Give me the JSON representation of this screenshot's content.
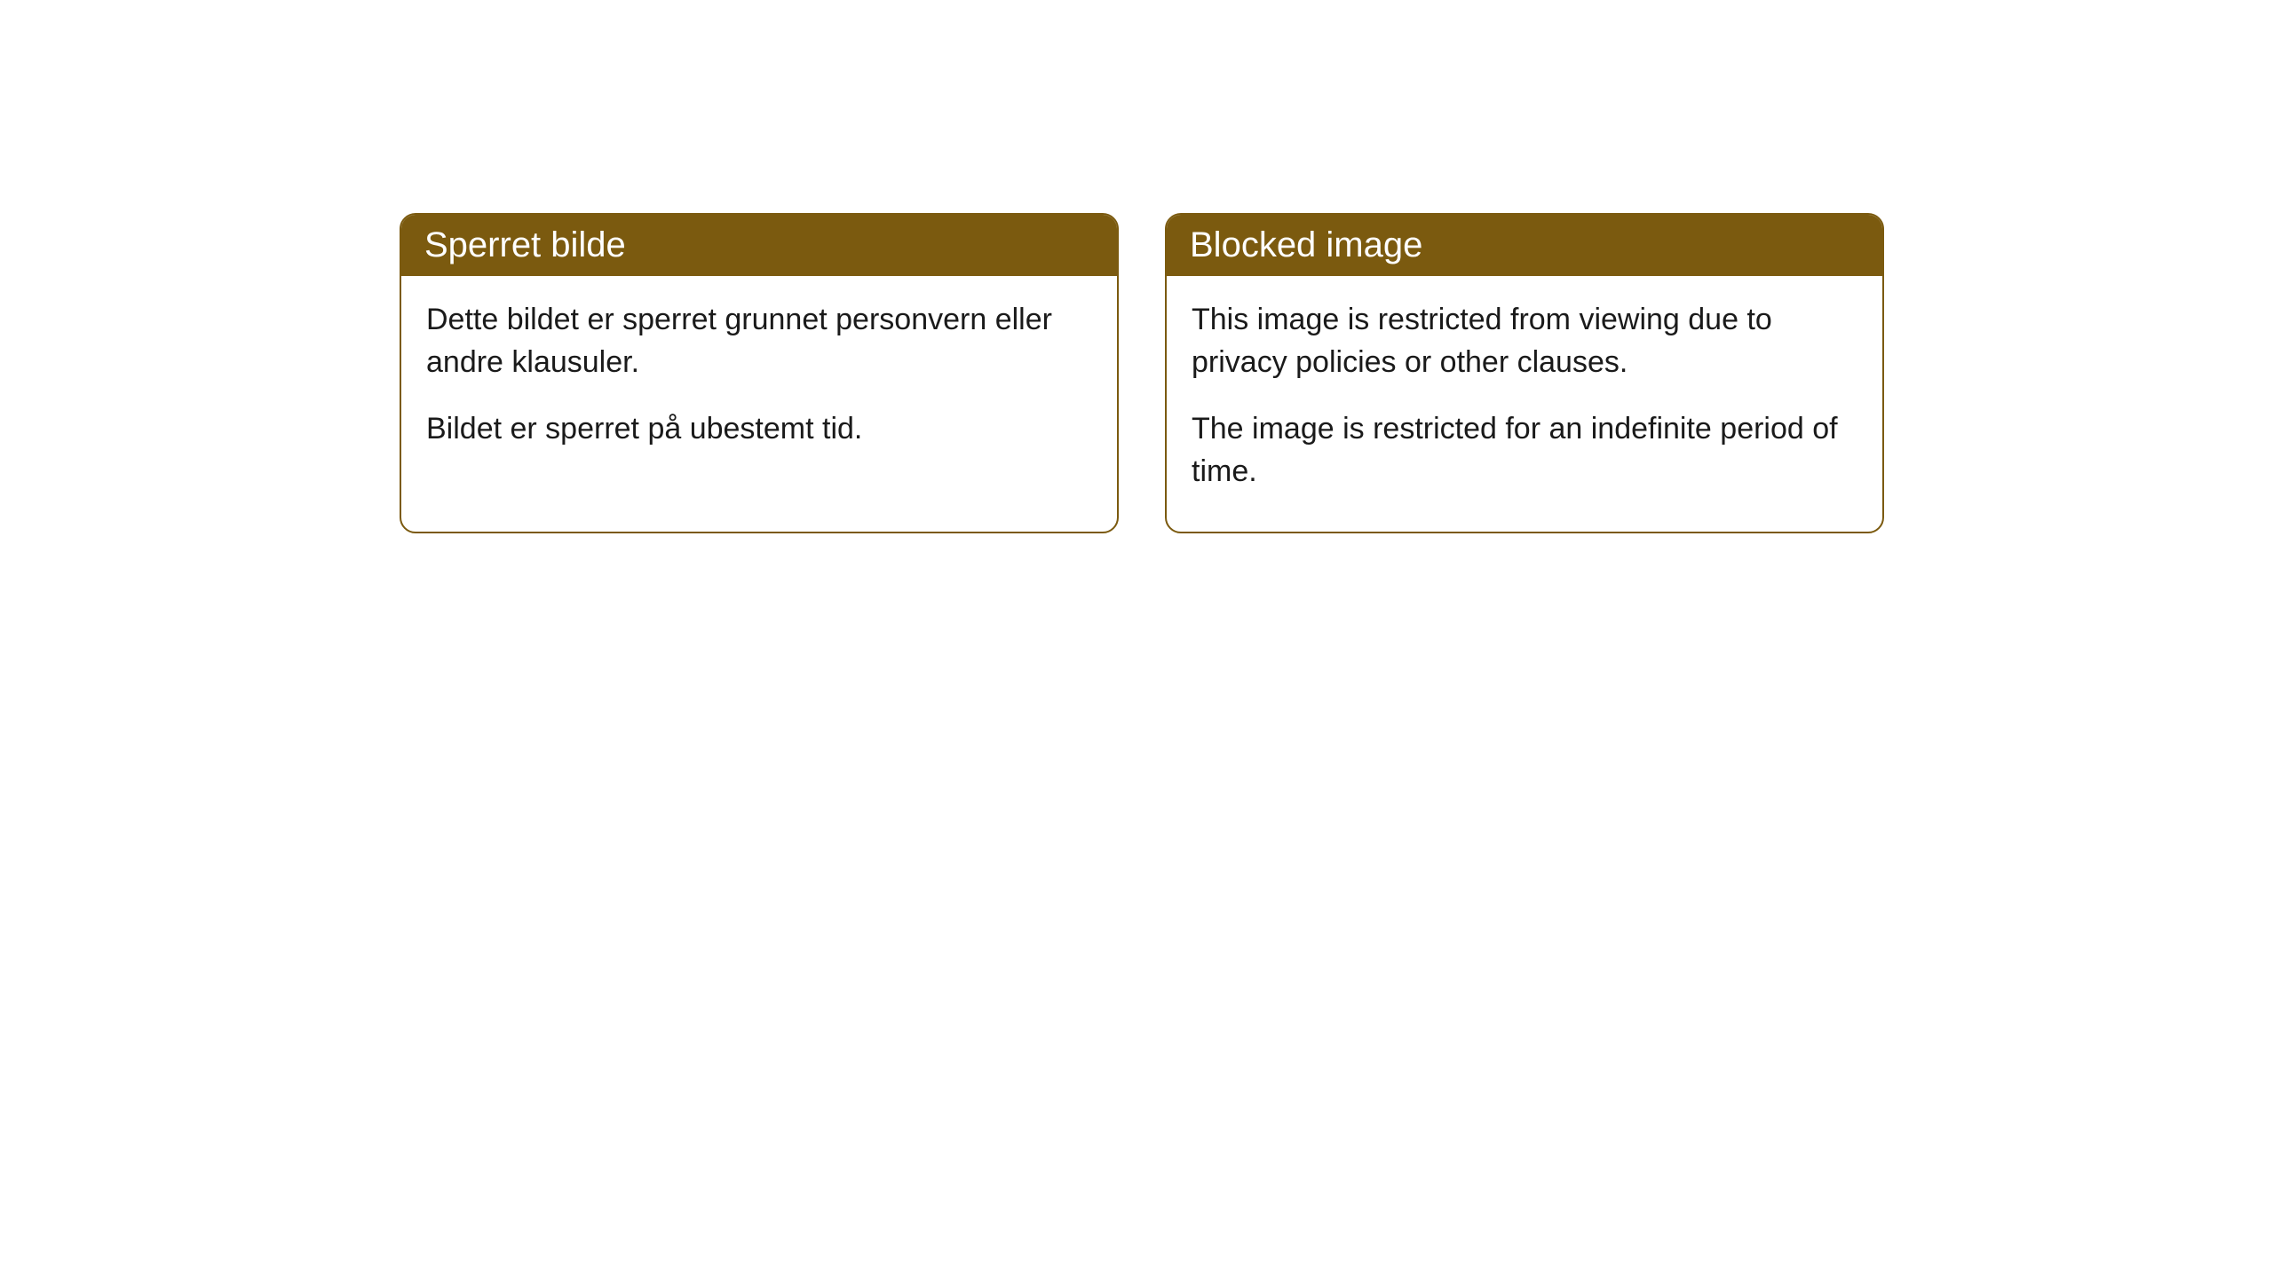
{
  "cards": [
    {
      "title": "Sperret bilde",
      "paragraph1": "Dette bildet er sperret grunnet personvern eller andre klausuler.",
      "paragraph2": "Bildet er sperret på ubestemt tid."
    },
    {
      "title": "Blocked image",
      "paragraph1": "This image is restricted from viewing due to privacy policies or other clauses.",
      "paragraph2": "The image is restricted for an indefinite period of time."
    }
  ],
  "styling": {
    "header_background_color": "#7b5a0f",
    "header_text_color": "#ffffff",
    "card_border_color": "#7b5a0f",
    "card_background_color": "#ffffff",
    "body_text_color": "#1a1a1a",
    "page_background_color": "#ffffff",
    "header_fontsize": 40,
    "body_fontsize": 34,
    "border_radius": 18,
    "border_width": 2
  }
}
